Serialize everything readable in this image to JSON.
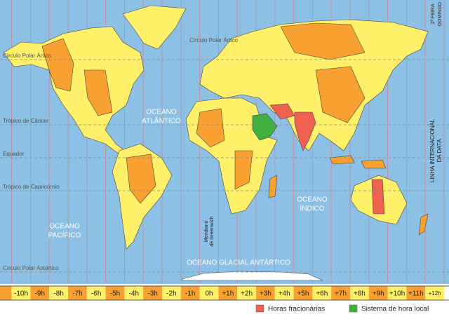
{
  "parallels": [
    "Círculo Polar Ártico",
    "Trópico de Câncer",
    "Equador",
    "Trópico de Capricórnio",
    "Círculo Polar Antártico"
  ],
  "ocean_labels": [
    {
      "lines": [
        "OCEANO",
        "ATLÂNTICO"
      ]
    },
    {
      "lines": [
        "OCEANO",
        "ÍNDICO"
      ]
    },
    {
      "lines": [
        "OCEANO",
        "PACÍFICO"
      ]
    },
    {
      "lines": [
        "OCEANO GLACIAL ANTÁRTICO"
      ]
    }
  ],
  "greenwich_label": [
    "Meridiano",
    "de Greenwich"
  ],
  "date_line_label": [
    "LINHA INTERNACIONAL",
    "DA DATA"
  ],
  "day_labels": [
    "2ª FEIRA",
    "DOMINGO"
  ],
  "time_zones": [
    "-10h",
    "-9h",
    "-8h",
    "-7h",
    "-6h",
    "-5h",
    "-4h",
    "-3h",
    "-2h",
    "-1h",
    "0h",
    "+1h",
    "+2h",
    "+3h",
    "+4h",
    "+5h",
    "+6h",
    "+7h",
    "+8h",
    "+9h",
    "+10h",
    "+11h",
    "+12h"
  ],
  "legend": [
    {
      "label": "Horas fracionárias",
      "color": "#f06050"
    },
    {
      "label": "Sistema de hora local",
      "color": "#40b040"
    }
  ]
}
